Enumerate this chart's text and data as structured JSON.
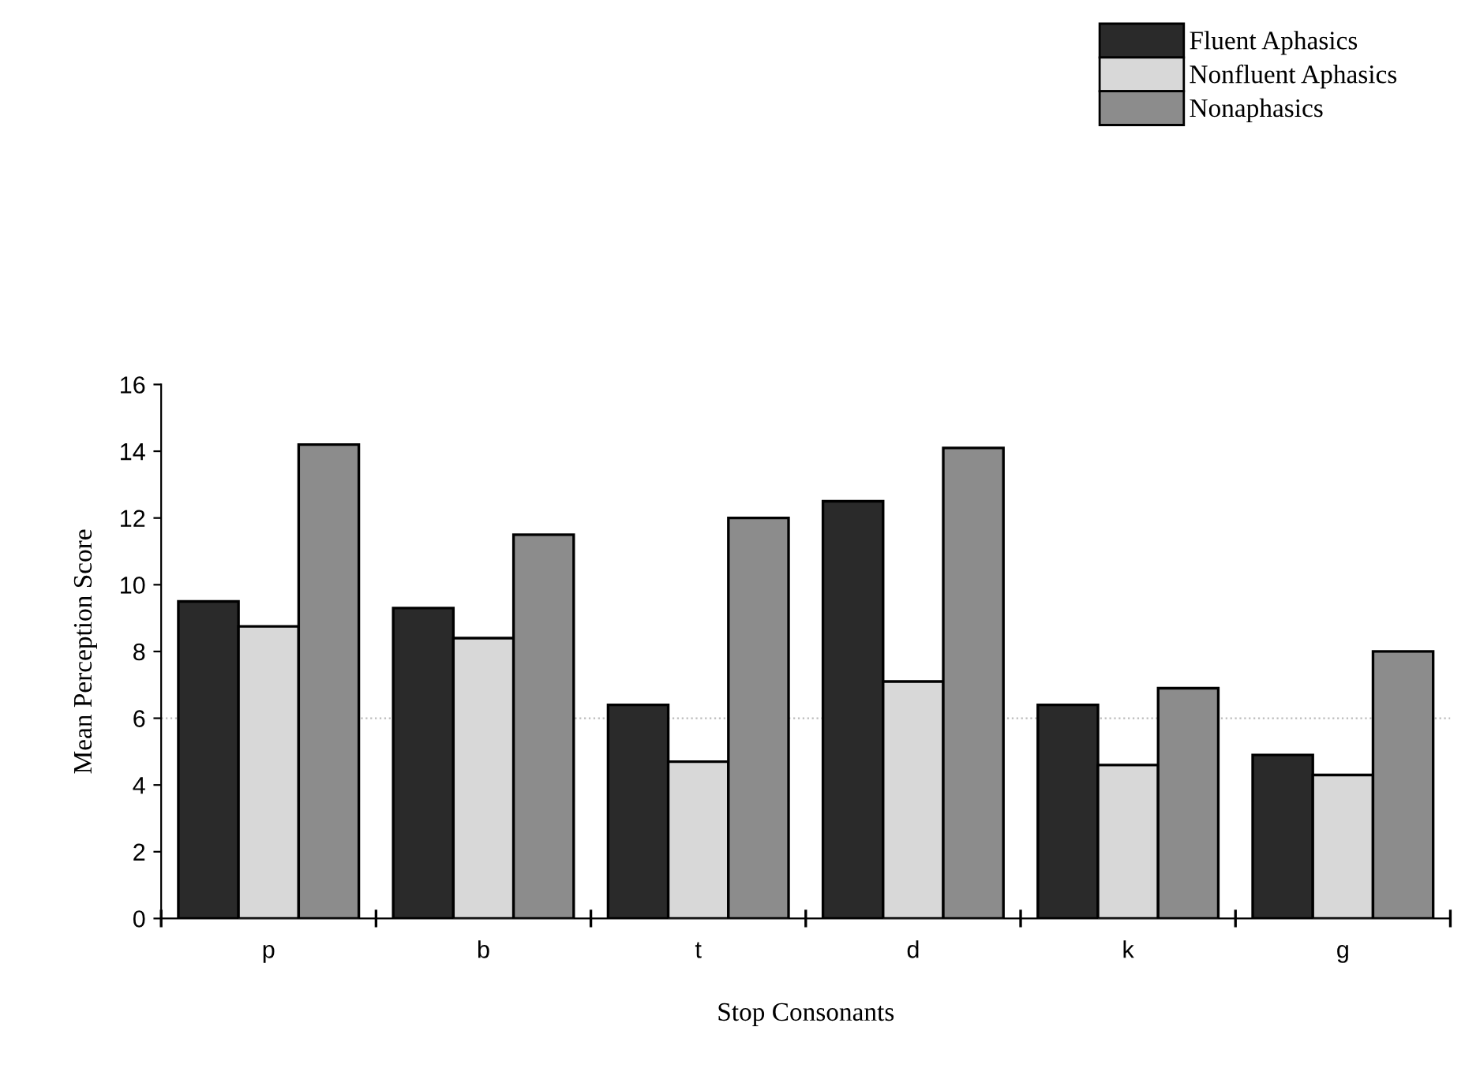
{
  "chart_data": {
    "type": "bar",
    "xlabel": "Stop Consonants",
    "ylabel": "Mean Perception Score",
    "categories": [
      "p",
      "b",
      "t",
      "d",
      "k",
      "g"
    ],
    "series": [
      {
        "name": "Fluent Aphasics",
        "color": "#2a2a2a",
        "values": [
          9.5,
          9.3,
          6.4,
          12.5,
          6.4,
          4.9
        ]
      },
      {
        "name": "Nonfluent Aphasics",
        "color": "#d8d8d8",
        "values": [
          8.75,
          8.4,
          4.7,
          7.1,
          4.6,
          4.3
        ]
      },
      {
        "name": "Nonaphasics",
        "color": "#8c8c8c",
        "values": [
          14.2,
          11.5,
          12.0,
          14.1,
          6.9,
          8.0
        ]
      }
    ],
    "ylim": [
      0,
      16
    ],
    "yticks": [
      0,
      2,
      4,
      6,
      8,
      10,
      12,
      14,
      16
    ],
    "ref_lines": [
      {
        "axis": "y",
        "value": 6,
        "label": null,
        "color": "#bbbbbb",
        "line_style": "dotted"
      }
    ],
    "grid": false,
    "legend": "top right"
  }
}
